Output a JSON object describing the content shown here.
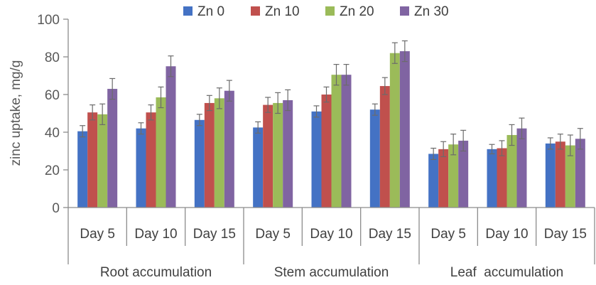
{
  "chart_data": {
    "type": "bar",
    "title": "",
    "xlabel": "",
    "ylabel": "zinc uptake, mg/g",
    "ylim": [
      0,
      100
    ],
    "yticks": [
      0,
      20,
      40,
      60,
      80,
      100
    ],
    "grid": false,
    "legend_position": "top",
    "groups": [
      "Root accumulation",
      "Stem accumulation",
      "Leaf  accumulation"
    ],
    "categories": [
      "Day 5",
      "Day 10",
      "Day 15",
      "Day 5",
      "Day 10",
      "Day 15",
      "Day 5",
      "Day 10",
      "Day 15"
    ],
    "series": [
      {
        "name": "Zn 0",
        "color": "#4472C4",
        "values": [
          40.5,
          42,
          46.5,
          42.5,
          51,
          52,
          28.5,
          31,
          34
        ],
        "errors": [
          3,
          3,
          3,
          3,
          3,
          3,
          3,
          2.5,
          3
        ]
      },
      {
        "name": "Zn 10",
        "color": "#C0504D",
        "values": [
          50.5,
          50.5,
          55.5,
          54.5,
          60,
          64.5,
          31,
          31.5,
          35
        ],
        "errors": [
          4,
          4,
          4,
          4,
          4,
          4.5,
          4,
          4,
          4
        ]
      },
      {
        "name": "Zn 20",
        "color": "#9BBB59",
        "values": [
          49.5,
          58.5,
          58,
          55.5,
          70.5,
          82,
          33.5,
          38.5,
          33
        ],
        "errors": [
          5.5,
          5.5,
          5.5,
          5.5,
          5.5,
          5.5,
          5.5,
          5.5,
          5.5
        ]
      },
      {
        "name": "Zn 30",
        "color": "#8064A2",
        "values": [
          63,
          75,
          62,
          57,
          70.5,
          83,
          35.5,
          42,
          36.5
        ],
        "errors": [
          5.5,
          5.5,
          5.5,
          5.5,
          5.5,
          5.5,
          5.5,
          5.5,
          5.5
        ]
      }
    ]
  }
}
